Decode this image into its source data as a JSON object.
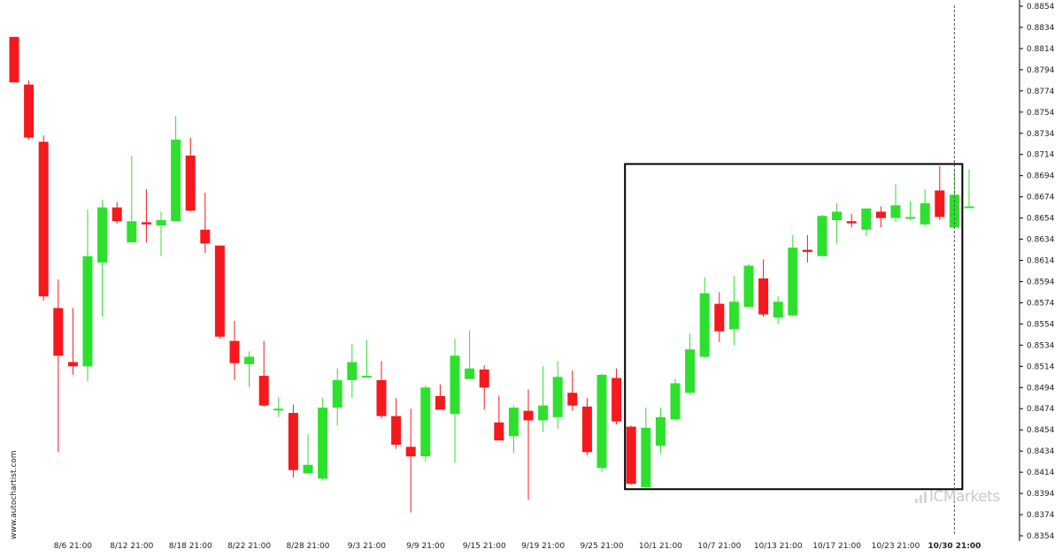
{
  "watermark": "www.autochartist.com",
  "brand": {
    "prefix": "IC",
    "name": "Markets"
  },
  "colors": {
    "bull": "#2ee02e",
    "bear": "#f5191d",
    "wick_bull": "#2ee02e",
    "wick_bear": "#f5191d",
    "box": "#000000",
    "grid": "#e6e6e6"
  },
  "chart_data": {
    "type": "candlestick",
    "title": "",
    "xlabel": "",
    "ylabel": "",
    "ylim": [
      0.8354,
      0.8854
    ],
    "y_ticks": [
      "0.8854",
      "0.8834",
      "0.8814",
      "0.8794",
      "0.8774",
      "0.8754",
      "0.8734",
      "0.8714",
      "0.8694",
      "0.8674",
      "0.8654",
      "0.8634",
      "0.8614",
      "0.8594",
      "0.8574",
      "0.8554",
      "0.8534",
      "0.8514",
      "0.8494",
      "0.8474",
      "0.8454",
      "0.8434",
      "0.8414",
      "0.8394",
      "0.8374",
      "0.8354"
    ],
    "x_ticks": [
      {
        "index": 4,
        "label": "8/6 21:00"
      },
      {
        "index": 8,
        "label": "8/12 21:00"
      },
      {
        "index": 12,
        "label": "8/18 21:00"
      },
      {
        "index": 16,
        "label": "8/22 21:00"
      },
      {
        "index": 20,
        "label": "8/28 21:00"
      },
      {
        "index": 24,
        "label": "9/3 21:00"
      },
      {
        "index": 28,
        "label": "9/9 21:00"
      },
      {
        "index": 32,
        "label": "9/15 21:00"
      },
      {
        "index": 36,
        "label": "9/19 21:00"
      },
      {
        "index": 40,
        "label": "9/25 21:00"
      },
      {
        "index": 44,
        "label": "10/1 21:00"
      },
      {
        "index": 48,
        "label": "10/7 21:00"
      },
      {
        "index": 52,
        "label": "10/13 21:00"
      },
      {
        "index": 56,
        "label": "10/17 21:00"
      },
      {
        "index": 60,
        "label": "10/23 21:00"
      },
      {
        "index": 64,
        "label": "10/30 21:00",
        "bold": true
      }
    ],
    "candles": [
      {
        "o": 0.8825,
        "h": 0.8825,
        "l": 0.8782,
        "c": 0.8782
      },
      {
        "o": 0.878,
        "h": 0.8784,
        "l": 0.8728,
        "c": 0.873
      },
      {
        "o": 0.8726,
        "h": 0.8732,
        "l": 0.8576,
        "c": 0.858
      },
      {
        "o": 0.8569,
        "h": 0.8596,
        "l": 0.8433,
        "c": 0.8524
      },
      {
        "o": 0.8518,
        "h": 0.8569,
        "l": 0.8506,
        "c": 0.8514
      },
      {
        "o": 0.8514,
        "h": 0.8662,
        "l": 0.85,
        "c": 0.8618
      },
      {
        "o": 0.8612,
        "h": 0.8671,
        "l": 0.8561,
        "c": 0.8664
      },
      {
        "o": 0.8664,
        "h": 0.8669,
        "l": 0.8649,
        "c": 0.8651
      },
      {
        "o": 0.8631,
        "h": 0.8713,
        "l": 0.8631,
        "c": 0.8651
      },
      {
        "o": 0.865,
        "h": 0.8681,
        "l": 0.8631,
        "c": 0.8648
      },
      {
        "o": 0.8647,
        "h": 0.866,
        "l": 0.8618,
        "c": 0.8652
      },
      {
        "o": 0.8651,
        "h": 0.875,
        "l": 0.8651,
        "c": 0.8728
      },
      {
        "o": 0.8713,
        "h": 0.873,
        "l": 0.866,
        "c": 0.8661
      },
      {
        "o": 0.8643,
        "h": 0.8678,
        "l": 0.8621,
        "c": 0.863
      },
      {
        "o": 0.8628,
        "h": 0.8628,
        "l": 0.854,
        "c": 0.8542
      },
      {
        "o": 0.8538,
        "h": 0.8557,
        "l": 0.8501,
        "c": 0.8517
      },
      {
        "o": 0.8516,
        "h": 0.8528,
        "l": 0.8494,
        "c": 0.8523
      },
      {
        "o": 0.8505,
        "h": 0.8538,
        "l": 0.8476,
        "c": 0.8477
      },
      {
        "o": 0.8474,
        "h": 0.8485,
        "l": 0.8466,
        "c": 0.8474
      },
      {
        "o": 0.847,
        "h": 0.8478,
        "l": 0.8409,
        "c": 0.8416
      },
      {
        "o": 0.8413,
        "h": 0.845,
        "l": 0.8412,
        "c": 0.8421
      },
      {
        "o": 0.8408,
        "h": 0.8484,
        "l": 0.8406,
        "c": 0.8475
      },
      {
        "o": 0.8475,
        "h": 0.8512,
        "l": 0.8458,
        "c": 0.8501
      },
      {
        "o": 0.8501,
        "h": 0.8535,
        "l": 0.8484,
        "c": 0.8518
      },
      {
        "o": 0.8505,
        "h": 0.8539,
        "l": 0.8505,
        "c": 0.8505
      },
      {
        "o": 0.8501,
        "h": 0.8519,
        "l": 0.8465,
        "c": 0.8467
      },
      {
        "o": 0.8467,
        "h": 0.8484,
        "l": 0.8436,
        "c": 0.844
      },
      {
        "o": 0.8438,
        "h": 0.8474,
        "l": 0.8376,
        "c": 0.8429
      },
      {
        "o": 0.8429,
        "h": 0.8496,
        "l": 0.8424,
        "c": 0.8494
      },
      {
        "o": 0.8486,
        "h": 0.8497,
        "l": 0.8473,
        "c": 0.8473
      },
      {
        "o": 0.8469,
        "h": 0.854,
        "l": 0.8423,
        "c": 0.8524
      },
      {
        "o": 0.8502,
        "h": 0.8548,
        "l": 0.8502,
        "c": 0.8512
      },
      {
        "o": 0.8511,
        "h": 0.8515,
        "l": 0.8473,
        "c": 0.8494
      },
      {
        "o": 0.8461,
        "h": 0.8486,
        "l": 0.8444,
        "c": 0.8444
      },
      {
        "o": 0.8448,
        "h": 0.8477,
        "l": 0.8432,
        "c": 0.8475
      },
      {
        "o": 0.8472,
        "h": 0.8492,
        "l": 0.8388,
        "c": 0.8463
      },
      {
        "o": 0.8463,
        "h": 0.8514,
        "l": 0.8452,
        "c": 0.8477
      },
      {
        "o": 0.8466,
        "h": 0.8519,
        "l": 0.8455,
        "c": 0.8504
      },
      {
        "o": 0.8489,
        "h": 0.851,
        "l": 0.8472,
        "c": 0.8477
      },
      {
        "o": 0.8476,
        "h": 0.8484,
        "l": 0.843,
        "c": 0.8433
      },
      {
        "o": 0.8418,
        "h": 0.8507,
        "l": 0.8414,
        "c": 0.8506
      },
      {
        "o": 0.8503,
        "h": 0.8512,
        "l": 0.8459,
        "c": 0.8462
      },
      {
        "o": 0.8457,
        "h": 0.8458,
        "l": 0.8402,
        "c": 0.8403
      },
      {
        "o": 0.84,
        "h": 0.8475,
        "l": 0.84,
        "c": 0.8456
      },
      {
        "o": 0.8439,
        "h": 0.8475,
        "l": 0.8432,
        "c": 0.8466
      },
      {
        "o": 0.8464,
        "h": 0.8502,
        "l": 0.8463,
        "c": 0.8498
      },
      {
        "o": 0.8489,
        "h": 0.8545,
        "l": 0.8487,
        "c": 0.853
      },
      {
        "o": 0.8523,
        "h": 0.8598,
        "l": 0.8522,
        "c": 0.8583
      },
      {
        "o": 0.8573,
        "h": 0.8584,
        "l": 0.8537,
        "c": 0.8547
      },
      {
        "o": 0.8549,
        "h": 0.8599,
        "l": 0.8534,
        "c": 0.8575
      },
      {
        "o": 0.857,
        "h": 0.8611,
        "l": 0.857,
        "c": 0.8609
      },
      {
        "o": 0.8597,
        "h": 0.8615,
        "l": 0.8561,
        "c": 0.8563
      },
      {
        "o": 0.856,
        "h": 0.858,
        "l": 0.8554,
        "c": 0.8575
      },
      {
        "o": 0.8562,
        "h": 0.8638,
        "l": 0.8561,
        "c": 0.8626
      },
      {
        "o": 0.8624,
        "h": 0.8638,
        "l": 0.8612,
        "c": 0.8622
      },
      {
        "o": 0.8618,
        "h": 0.8657,
        "l": 0.8618,
        "c": 0.8656
      },
      {
        "o": 0.8652,
        "h": 0.8668,
        "l": 0.863,
        "c": 0.866
      },
      {
        "o": 0.8651,
        "h": 0.8658,
        "l": 0.8645,
        "c": 0.8649
      },
      {
        "o": 0.8643,
        "h": 0.8663,
        "l": 0.8637,
        "c": 0.8663
      },
      {
        "o": 0.866,
        "h": 0.8665,
        "l": 0.8645,
        "c": 0.8654
      },
      {
        "o": 0.8654,
        "h": 0.8686,
        "l": 0.865,
        "c": 0.8666
      },
      {
        "o": 0.8655,
        "h": 0.867,
        "l": 0.8652,
        "c": 0.8655
      },
      {
        "o": 0.8648,
        "h": 0.8681,
        "l": 0.8647,
        "c": 0.8668
      },
      {
        "o": 0.868,
        "h": 0.8703,
        "l": 0.8652,
        "c": 0.8655
      },
      {
        "o": 0.8645,
        "h": 0.87,
        "l": 0.8645,
        "c": 0.8676
      },
      {
        "o": 0.8665,
        "h": 0.87,
        "l": 0.8665,
        "c": 0.8665
      }
    ],
    "pattern_box": {
      "start_index": 42,
      "end_index": 64,
      "y_low": 0.8398,
      "y_high": 0.8705
    },
    "current_marker_index": 64
  }
}
